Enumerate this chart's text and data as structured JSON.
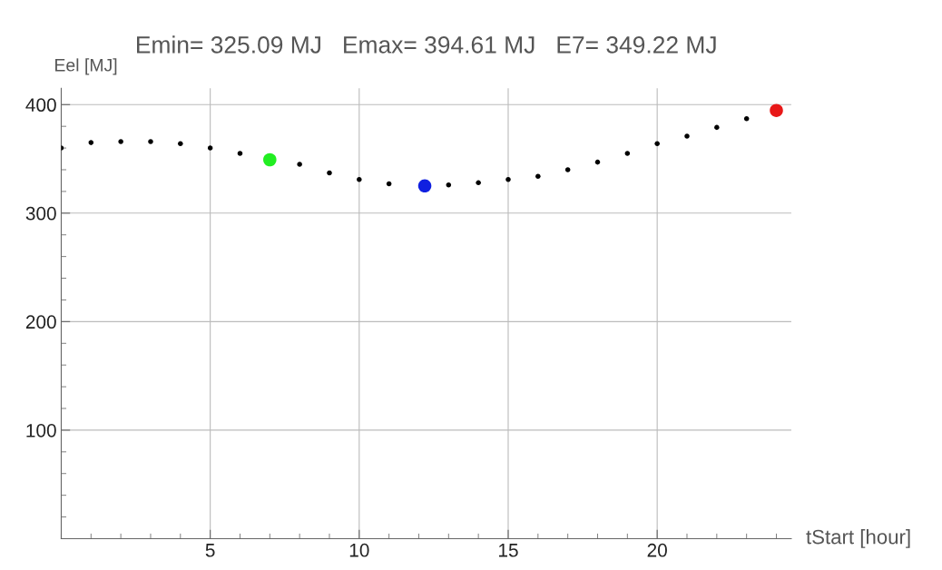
{
  "chart_data": {
    "type": "scatter",
    "title": "Emin= 325.09 MJ   Emax= 394.61 MJ   E7= 349.22 MJ",
    "xlabel": "tStart [hour]",
    "ylabel": "Eel [MJ]",
    "series": [
      {
        "color": "#000000",
        "marker": "circle",
        "x": [
          0,
          1,
          2,
          3,
          4,
          5,
          6,
          8,
          9,
          10,
          11,
          13,
          14,
          15,
          16,
          17,
          18,
          19,
          20,
          21,
          22,
          23
        ],
        "values": [
          360,
          365,
          366,
          366,
          364,
          360,
          355,
          345,
          337,
          331,
          327,
          326,
          328,
          331,
          334,
          340,
          347,
          355,
          364,
          371,
          379,
          387
        ]
      },
      {
        "color": "#22ee22",
        "marker": "circle",
        "x": [
          7
        ],
        "values": [
          349.22
        ]
      },
      {
        "color": "#1020e0",
        "marker": "circle",
        "x": [
          12.2
        ],
        "values": [
          325.09
        ]
      },
      {
        "color": "#e81818",
        "marker": "circle",
        "x": [
          24
        ],
        "values": [
          394.61
        ]
      }
    ],
    "xlim": [
      0,
      24.5
    ],
    "ylim": [
      0,
      415
    ],
    "xticks": [
      5,
      10,
      15,
      20
    ],
    "yticks": [
      100,
      200,
      300,
      400
    ],
    "grid": true
  }
}
